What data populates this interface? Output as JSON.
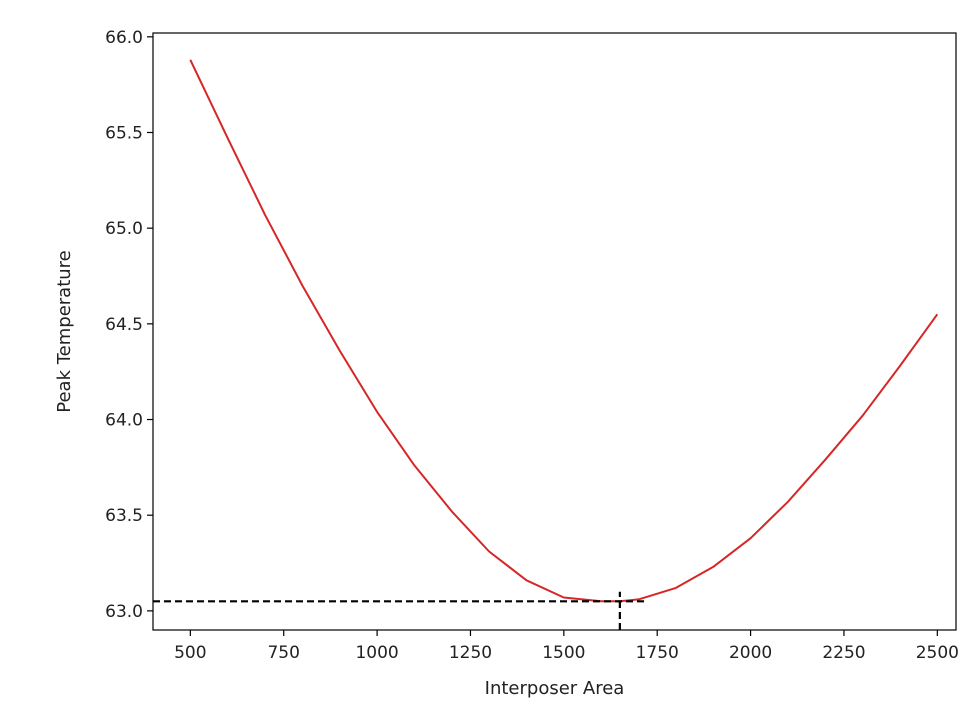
{
  "chart_data": {
    "type": "line",
    "title": "",
    "xlabel": "Interposer Area",
    "ylabel": "Peak Temperature",
    "xlim": [
      400,
      2550
    ],
    "ylim": [
      62.9,
      66.02
    ],
    "xticks": [
      500,
      750,
      1000,
      1250,
      1500,
      1750,
      2000,
      2250,
      2500
    ],
    "xtick_labels": [
      "500",
      "750",
      "1000",
      "1250",
      "1500",
      "1750",
      "2000",
      "2250",
      "2500"
    ],
    "yticks": [
      63.0,
      63.5,
      64.0,
      64.5,
      65.0,
      65.5,
      66.0
    ],
    "ytick_labels": [
      "63.0",
      "63.5",
      "64.0",
      "64.5",
      "65.0",
      "65.5",
      "66.0"
    ],
    "grid": false,
    "series": [
      {
        "color": "#d62728",
        "x": [
          500,
          600,
          700,
          800,
          900,
          1000,
          1100,
          1200,
          1300,
          1400,
          1500,
          1600,
          1650,
          1700,
          1800,
          1900,
          2000,
          2100,
          2200,
          2300,
          2400,
          2500
        ],
        "y": [
          65.88,
          65.47,
          65.07,
          64.7,
          64.36,
          64.04,
          63.76,
          63.52,
          63.31,
          63.16,
          63.07,
          63.05,
          63.05,
          63.06,
          63.12,
          63.23,
          63.38,
          63.57,
          63.79,
          64.02,
          64.28,
          64.55
        ]
      }
    ],
    "annotations": [
      {
        "type": "hline",
        "y": 63.05,
        "x_from": 400,
        "x_to": 1720,
        "style": "dashed",
        "color": "#000000"
      },
      {
        "type": "vline",
        "x": 1650,
        "y_from": 62.9,
        "y_to": 63.1,
        "style": "dashed",
        "color": "#000000"
      }
    ]
  }
}
